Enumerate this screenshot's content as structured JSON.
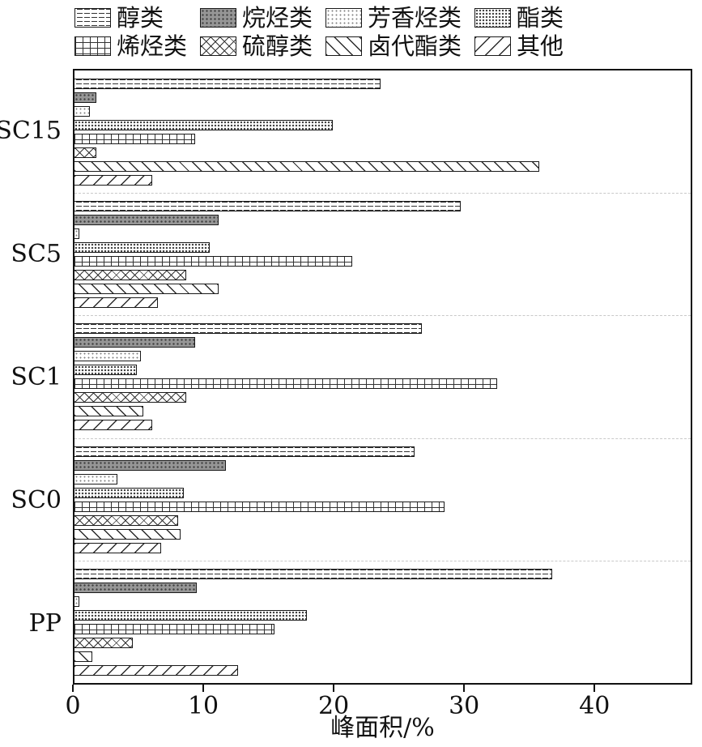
{
  "figure": {
    "background": "#ffffff",
    "bar_border_color": "#1a1a1a",
    "axis_color": "#111111"
  },
  "chart_data": {
    "type": "bar",
    "orientation": "horizontal",
    "title": "",
    "xlabel": "峰面积/%",
    "ylabel": "",
    "xlim": [
      0,
      47.5
    ],
    "xticks": [
      0,
      10,
      20,
      30,
      40
    ],
    "legend_position": "top",
    "grid": "dashed horizontal separators between category groups",
    "categories": [
      "SC15",
      "SC5",
      "SC1",
      "SC0",
      "PP"
    ],
    "series": [
      {
        "name": "醇类",
        "key": "alcohol",
        "pattern": "horizontal-dashes",
        "values": [
          23.6,
          29.8,
          26.8,
          26.2,
          36.8
        ]
      },
      {
        "name": "烷烃类",
        "key": "alkane",
        "pattern": "gray-with-dark-dots",
        "values": [
          1.7,
          11.1,
          9.3,
          11.7,
          9.4
        ]
      },
      {
        "name": "芳香烃类",
        "key": "aromatic",
        "pattern": "light-fine-dots",
        "values": [
          1.2,
          0.4,
          5.1,
          3.3,
          0.4
        ]
      },
      {
        "name": "酯类",
        "key": "ester",
        "pattern": "dense-dots",
        "values": [
          19.9,
          10.4,
          4.8,
          8.4,
          17.9
        ]
      },
      {
        "name": "烯烃类",
        "key": "alkene",
        "pattern": "vertical-line-ladder",
        "values": [
          9.3,
          21.4,
          32.6,
          28.5,
          15.4
        ]
      },
      {
        "name": "硫醇类",
        "key": "thiol",
        "pattern": "crosshatch-x",
        "values": [
          1.7,
          8.6,
          8.6,
          8.0,
          4.5
        ]
      },
      {
        "name": "卤代酯类",
        "key": "haloester",
        "pattern": "backslash-diagonals",
        "values": [
          35.8,
          11.1,
          5.3,
          8.2,
          1.4
        ]
      },
      {
        "name": "其他",
        "key": "other",
        "pattern": "forwardslash-diagonals",
        "values": [
          6.0,
          6.4,
          6.0,
          6.7,
          12.6
        ]
      }
    ]
  }
}
